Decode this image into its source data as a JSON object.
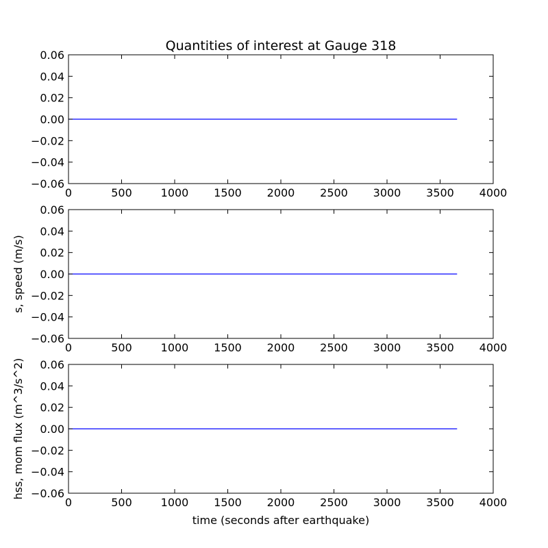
{
  "title": "Quantities of interest at Gauge 318",
  "line_color": "#0000ff",
  "chart_data": [
    {
      "type": "line",
      "ylabel": "",
      "xlabel": "",
      "xlim": [
        0,
        4000
      ],
      "ylim": [
        -0.06,
        0.06
      ],
      "xticks": [
        0,
        500,
        1000,
        1500,
        2000,
        2500,
        3000,
        3500,
        4000
      ],
      "yticks": [
        0.06,
        0.04,
        0.02,
        0.0,
        -0.02,
        -0.04,
        -0.06
      ],
      "xtick_labels": [
        "0",
        "500",
        "1000",
        "1500",
        "2000",
        "2500",
        "3000",
        "3500",
        "4000"
      ],
      "ytick_labels": [
        "0.06",
        "0.04",
        "0.02",
        "0.00",
        "−0.02",
        "−0.04",
        "−0.06"
      ],
      "series": [
        {
          "x": [
            0,
            3660
          ],
          "y": [
            0,
            0
          ]
        }
      ],
      "grid": false
    },
    {
      "type": "line",
      "ylabel": "s, speed (m/s)",
      "xlabel": "",
      "xlim": [
        0,
        4000
      ],
      "ylim": [
        -0.06,
        0.06
      ],
      "xticks": [
        0,
        500,
        1000,
        1500,
        2000,
        2500,
        3000,
        3500,
        4000
      ],
      "yticks": [
        0.06,
        0.04,
        0.02,
        0.0,
        -0.02,
        -0.04,
        -0.06
      ],
      "xtick_labels": [
        "0",
        "500",
        "1000",
        "1500",
        "2000",
        "2500",
        "3000",
        "3500",
        "4000"
      ],
      "ytick_labels": [
        "0.06",
        "0.04",
        "0.02",
        "0.00",
        "−0.02",
        "−0.04",
        "−0.06"
      ],
      "series": [
        {
          "x": [
            0,
            3660
          ],
          "y": [
            0,
            0
          ]
        }
      ],
      "grid": false
    },
    {
      "type": "line",
      "ylabel": "hss, mom flux (m^3/s^2)",
      "xlabel": "time (seconds after earthquake)",
      "xlim": [
        0,
        4000
      ],
      "ylim": [
        -0.06,
        0.06
      ],
      "xticks": [
        0,
        500,
        1000,
        1500,
        2000,
        2500,
        3000,
        3500,
        4000
      ],
      "yticks": [
        0.06,
        0.04,
        0.02,
        0.0,
        -0.02,
        -0.04,
        -0.06
      ],
      "xtick_labels": [
        "0",
        "500",
        "1000",
        "1500",
        "2000",
        "2500",
        "3000",
        "3500",
        "4000"
      ],
      "ytick_labels": [
        "0.06",
        "0.04",
        "0.02",
        "0.00",
        "−0.02",
        "−0.04",
        "−0.06"
      ],
      "series": [
        {
          "x": [
            0,
            3660
          ],
          "y": [
            0,
            0
          ]
        }
      ],
      "grid": false
    }
  ]
}
